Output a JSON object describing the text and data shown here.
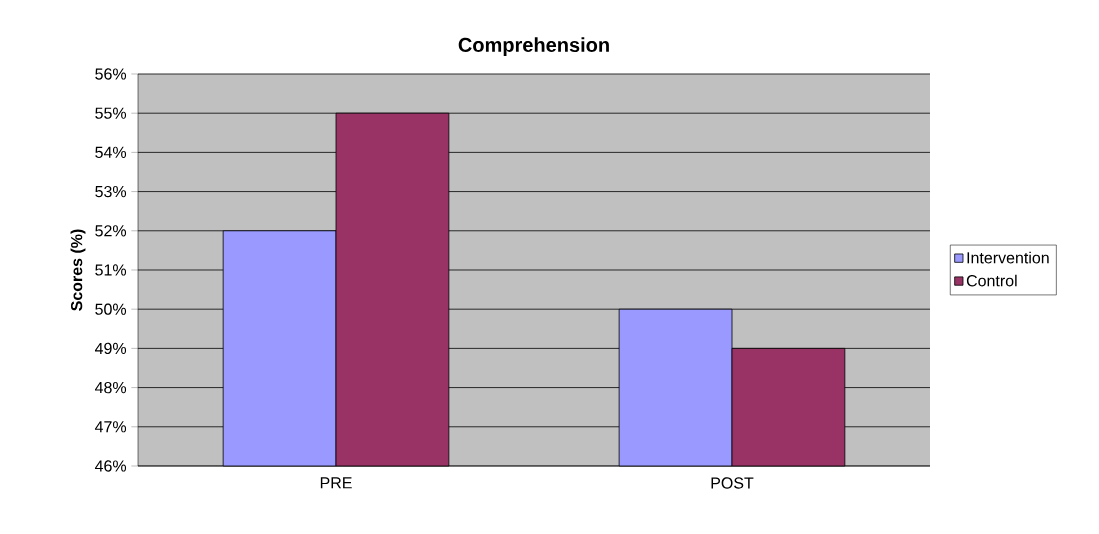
{
  "chart_data": {
    "type": "bar",
    "title": "Comprehension",
    "ylabel": "Scores (%)",
    "categories": [
      "PRE",
      "POST"
    ],
    "series": [
      {
        "name": "Intervention",
        "color": "#9999ff",
        "values": [
          52,
          50
        ]
      },
      {
        "name": "Control",
        "color": "#993366",
        "values": [
          55,
          49
        ]
      }
    ],
    "ylim": [
      46,
      56
    ],
    "yticks": [
      {
        "value": 46,
        "label": "46%"
      },
      {
        "value": 47,
        "label": "47%"
      },
      {
        "value": 48,
        "label": "48%"
      },
      {
        "value": 49,
        "label": "49%"
      },
      {
        "value": 50,
        "label": "50%"
      },
      {
        "value": 51,
        "label": "51%"
      },
      {
        "value": 52,
        "label": "52%"
      },
      {
        "value": 53,
        "label": "53%"
      },
      {
        "value": 54,
        "label": "54%"
      },
      {
        "value": 55,
        "label": "55%"
      },
      {
        "value": 56,
        "label": "56%"
      }
    ],
    "grid": "y",
    "legend": "right"
  }
}
